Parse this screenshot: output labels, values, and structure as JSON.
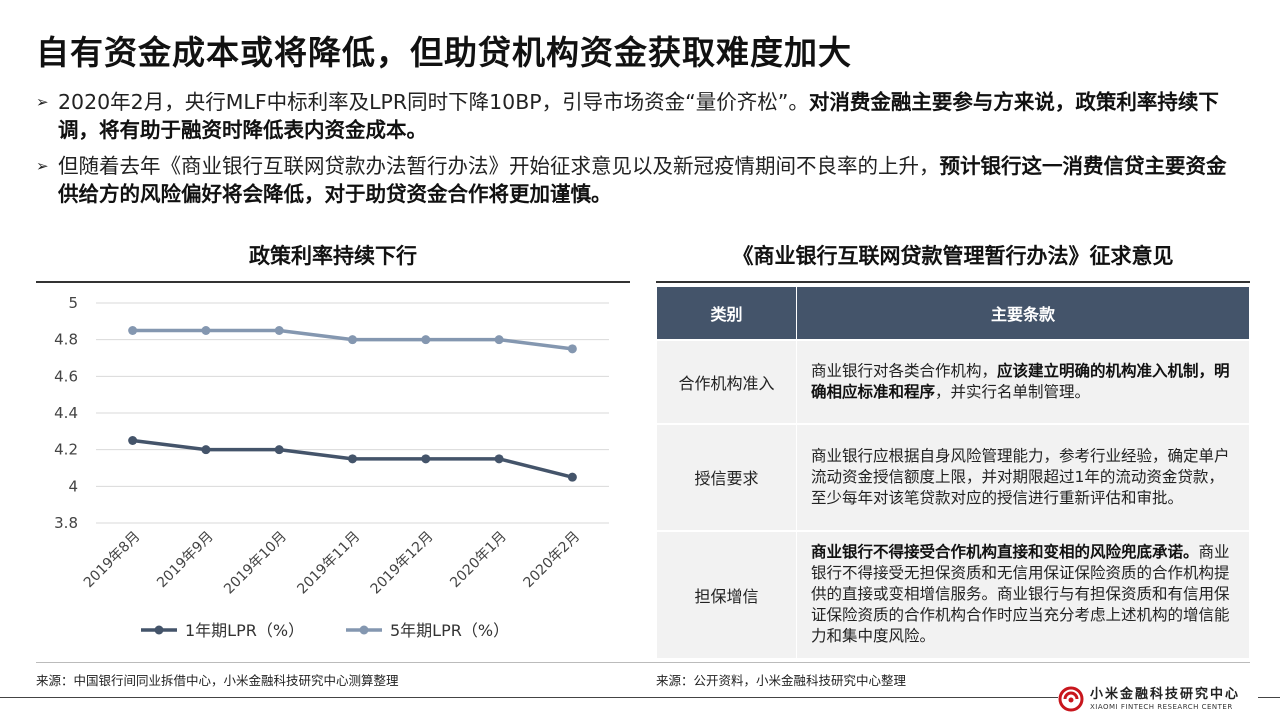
{
  "slide": {
    "title": "自有资金成本或将降低，但助贷机构资金获取难度加大",
    "bullets": [
      {
        "arrow": "➢",
        "plain": "2020年2月，央行MLF中标利率及LPR同时下降10BP，引导市场资金“量价齐松”。",
        "bold": "对消费金融主要参与方来说，政策利率持续下调，将有助于融资时降低表内资金成本。"
      },
      {
        "arrow": "➢",
        "plain": "但随着去年《商业银行互联网贷款办法暂行办法》开始征求意见以及新冠疫情期间不良率的上升，",
        "bold": "预计银行这一消费信贷主要资金供给方的风险偏好将会降低，对于助贷资金合作将更加谨慎。"
      }
    ]
  },
  "chart_section": {
    "title": "政策利率持续下行",
    "source": "来源：中国银行间同业拆借中心，小米金融科技研究中心测算整理"
  },
  "chart_data": {
    "type": "line",
    "title": "政策利率持续下行",
    "categories": [
      "2019年8月",
      "2019年9月",
      "2019年10月",
      "2019年11月",
      "2019年12月",
      "2020年1月",
      "2020年2月"
    ],
    "series": [
      {
        "name": "1年期LPR（%）",
        "values": [
          4.25,
          4.2,
          4.2,
          4.15,
          4.15,
          4.15,
          4.05
        ],
        "color": "#44546a"
      },
      {
        "name": "5年期LPR（%）",
        "values": [
          4.85,
          4.85,
          4.85,
          4.8,
          4.8,
          4.8,
          4.75
        ],
        "color": "#8497b0"
      }
    ],
    "yticks": [
      "5",
      "4.8",
      "4.6",
      "4.4",
      "4.2",
      "4",
      "3.8"
    ],
    "ylim": [
      3.8,
      5.0
    ],
    "grid": true,
    "legend": "bottom"
  },
  "table_section": {
    "title": "《商业银行互联网贷款管理暂行办法》征求意见",
    "headers": [
      "类别",
      "主要条款"
    ],
    "rows": [
      {
        "category": "合作机构准入",
        "pre": "商业银行对各类合作机构，",
        "bold": "应该建立明确的机构准入机制，明确相应标准和程序",
        "post": "，并实行名单制管理。"
      },
      {
        "category": "授信要求",
        "pre": "商业银行应根据自身风险管理能力，参考行业经验，确定单户流动资金授信额度上限，并对期限超过1年的流动资金贷款，至少每年对该笔贷款对应的授信进行重新评估和审批。",
        "bold": "",
        "post": ""
      },
      {
        "category": "担保增信",
        "pre": "",
        "bold": "商业银行不得接受合作机构直接和变相的风险兜底承诺。",
        "post": "商业银行不得接受无担保资质和无信用保证保险资质的合作机构提供的直接或变相增信服务。商业银行与有担保资质和有信用保证保险资质的合作机构合作时应当充分考虑上述机构的增信能力和集中度风险。"
      }
    ],
    "source": "来源：公开资料，小米金融科技研究中心整理"
  },
  "brand": {
    "cn": "小米金融科技研究中心",
    "en": "XIAOMI FINTECH RESEARCH CENTER",
    "accent": "#c8161d"
  }
}
